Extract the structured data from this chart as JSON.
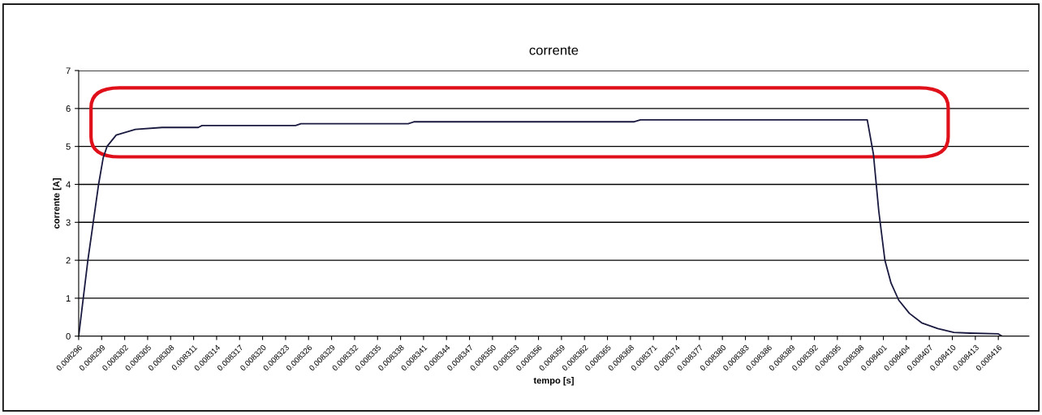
{
  "chart_data": {
    "type": "line",
    "title": "corrente",
    "xlabel": "tempo [s]",
    "ylabel": "corrente [A]",
    "x": [
      0.008296,
      0.0082966,
      0.0082972,
      0.0082979,
      0.0082986,
      0.0082992,
      0.0082997,
      0.0083009,
      0.0083034,
      0.0083069,
      0.0083116,
      0.0083121,
      0.0083243,
      0.008325,
      0.008339,
      0.0083398,
      0.0083685,
      0.0083693,
      0.0083989,
      0.0083997,
      0.0084004,
      0.0084012,
      0.008402,
      0.008403,
      0.0084044,
      0.008406,
      0.0084081,
      0.0084102,
      0.0084123,
      0.008416,
      0.0084165
    ],
    "series": [
      {
        "color": "#1a1a40",
        "values": [
          0,
          1,
          2,
          3,
          4,
          4.7,
          5.0,
          5.3,
          5.45,
          5.5,
          5.5,
          5.55,
          5.55,
          5.6,
          5.6,
          5.65,
          5.65,
          5.7,
          5.7,
          4.8,
          3.3,
          2.0,
          1.4,
          0.95,
          0.6,
          0.35,
          0.2,
          0.1,
          0.08,
          0.06,
          0
        ]
      }
    ],
    "xlim": [
      0.008296,
      0.00842
    ],
    "xticks": [
      0.008296,
      0.008299,
      0.008302,
      0.008305,
      0.008308,
      0.008311,
      0.008314,
      0.008317,
      {
        "value": 0.00832,
        "label": "0.008320"
      },
      0.008323,
      0.008326,
      0.008329,
      0.008332,
      0.008335,
      0.008338,
      0.008341,
      0.008344,
      0.008347,
      {
        "value": 0.00835,
        "label": "0.008350"
      },
      0.008353,
      0.008356,
      0.008359,
      0.008362,
      0.008365,
      0.008368,
      0.008371,
      0.008374,
      0.008377,
      {
        "value": 0.00838,
        "label": "0.008380"
      },
      0.008383,
      0.008386,
      0.008389,
      0.008392,
      0.008395,
      0.008398,
      0.008401,
      0.008404,
      0.008407,
      {
        "value": 0.00841,
        "label": "0.008410"
      },
      0.008413,
      0.008416
    ],
    "ylim": [
      0,
      7
    ],
    "yticks": [
      0,
      1,
      2,
      3,
      4,
      5,
      6,
      7
    ],
    "grid": "y",
    "legend": false,
    "marker": "none",
    "line_style": "solid"
  }
}
